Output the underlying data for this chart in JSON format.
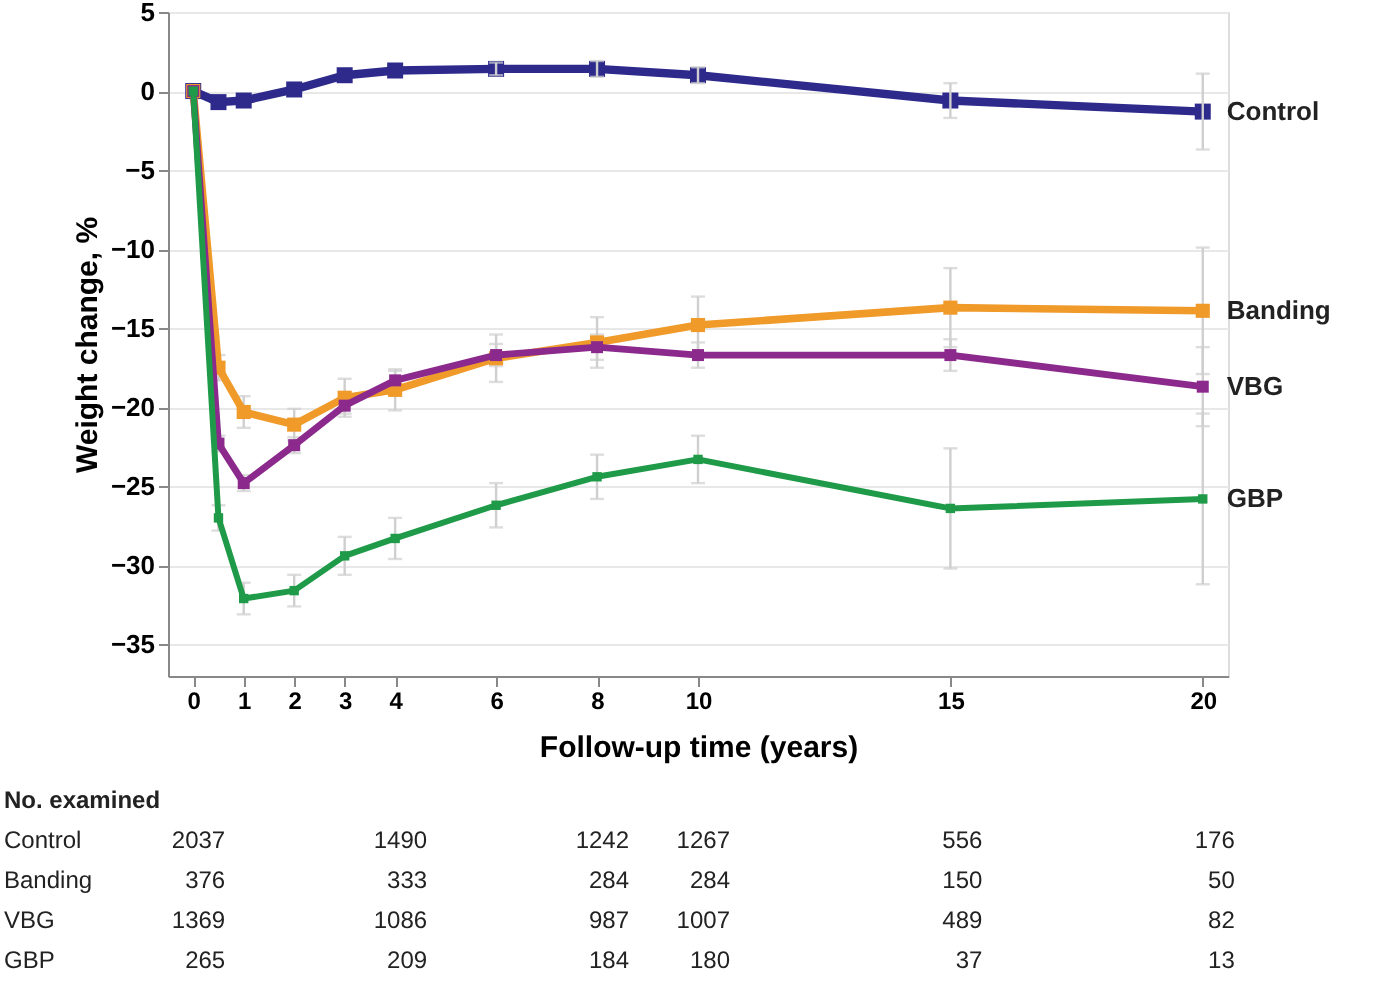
{
  "chart_data": {
    "type": "line",
    "xlabel": "Follow-up time (years)",
    "ylabel": "Weight change, %",
    "x": [
      0,
      0.5,
      1,
      2,
      3,
      4,
      6,
      8,
      10,
      15,
      20
    ],
    "series": [
      {
        "name": "Control",
        "color": "#2e2a8c",
        "values": [
          0,
          -0.7,
          -0.6,
          0.1,
          1.0,
          1.3,
          1.4,
          1.4,
          1.0,
          -0.6,
          -1.3
        ],
        "errors": [
          null,
          null,
          null,
          null,
          null,
          null,
          0.4,
          0.5,
          0.5,
          1.1,
          2.4
        ]
      },
      {
        "name": "Banding",
        "color": "#f09a2a",
        "values": [
          0,
          -17.5,
          -20.3,
          -21.1,
          -19.4,
          -18.9,
          -16.9,
          -15.9,
          -14.8,
          -13.7,
          -13.9
        ],
        "errors": [
          null,
          0.8,
          1.0,
          1.0,
          1.2,
          1.3,
          1.5,
          1.6,
          1.8,
          2.5,
          4.0
        ]
      },
      {
        "name": "VBG",
        "color": "#8b2a8c",
        "values": [
          0,
          -22.3,
          -24.8,
          -22.4,
          -19.9,
          -18.3,
          -16.7,
          -16.2,
          -16.7,
          -16.7,
          -18.7
        ],
        "errors": [
          null,
          0.5,
          0.5,
          0.5,
          0.5,
          0.6,
          0.7,
          0.8,
          0.8,
          1.0,
          2.5
        ]
      },
      {
        "name": "GBP",
        "color": "#1f9a48",
        "values": [
          0,
          -27.0,
          -32.1,
          -31.6,
          -29.4,
          -28.3,
          -26.2,
          -24.4,
          -23.3,
          -26.4,
          -25.8
        ],
        "errors": [
          null,
          0.8,
          1.0,
          1.0,
          1.2,
          1.3,
          1.4,
          1.4,
          1.5,
          3.8,
          5.4
        ]
      }
    ],
    "xlim": [
      -0.5,
      20.5
    ],
    "xticks": [
      0,
      1,
      2,
      3,
      4,
      6,
      8,
      10,
      15,
      20
    ],
    "ylim": [
      -37,
      5
    ],
    "yticks": [
      5,
      0,
      -5,
      -10,
      -15,
      -20,
      -25,
      -30,
      -35
    ],
    "grid": "y",
    "marker": "square",
    "line_style": "solid",
    "annotations": [
      "No. examined",
      "Control",
      "2037",
      "1490",
      "1242",
      "1267",
      "556",
      "176",
      "Banding",
      "376",
      "333",
      "284",
      "284",
      "150",
      "50",
      "VBG",
      "1369",
      "1086",
      "987",
      "1007",
      "489",
      "82",
      "GBP",
      "265",
      "209",
      "184",
      "180",
      "37",
      "13"
    ]
  }
}
